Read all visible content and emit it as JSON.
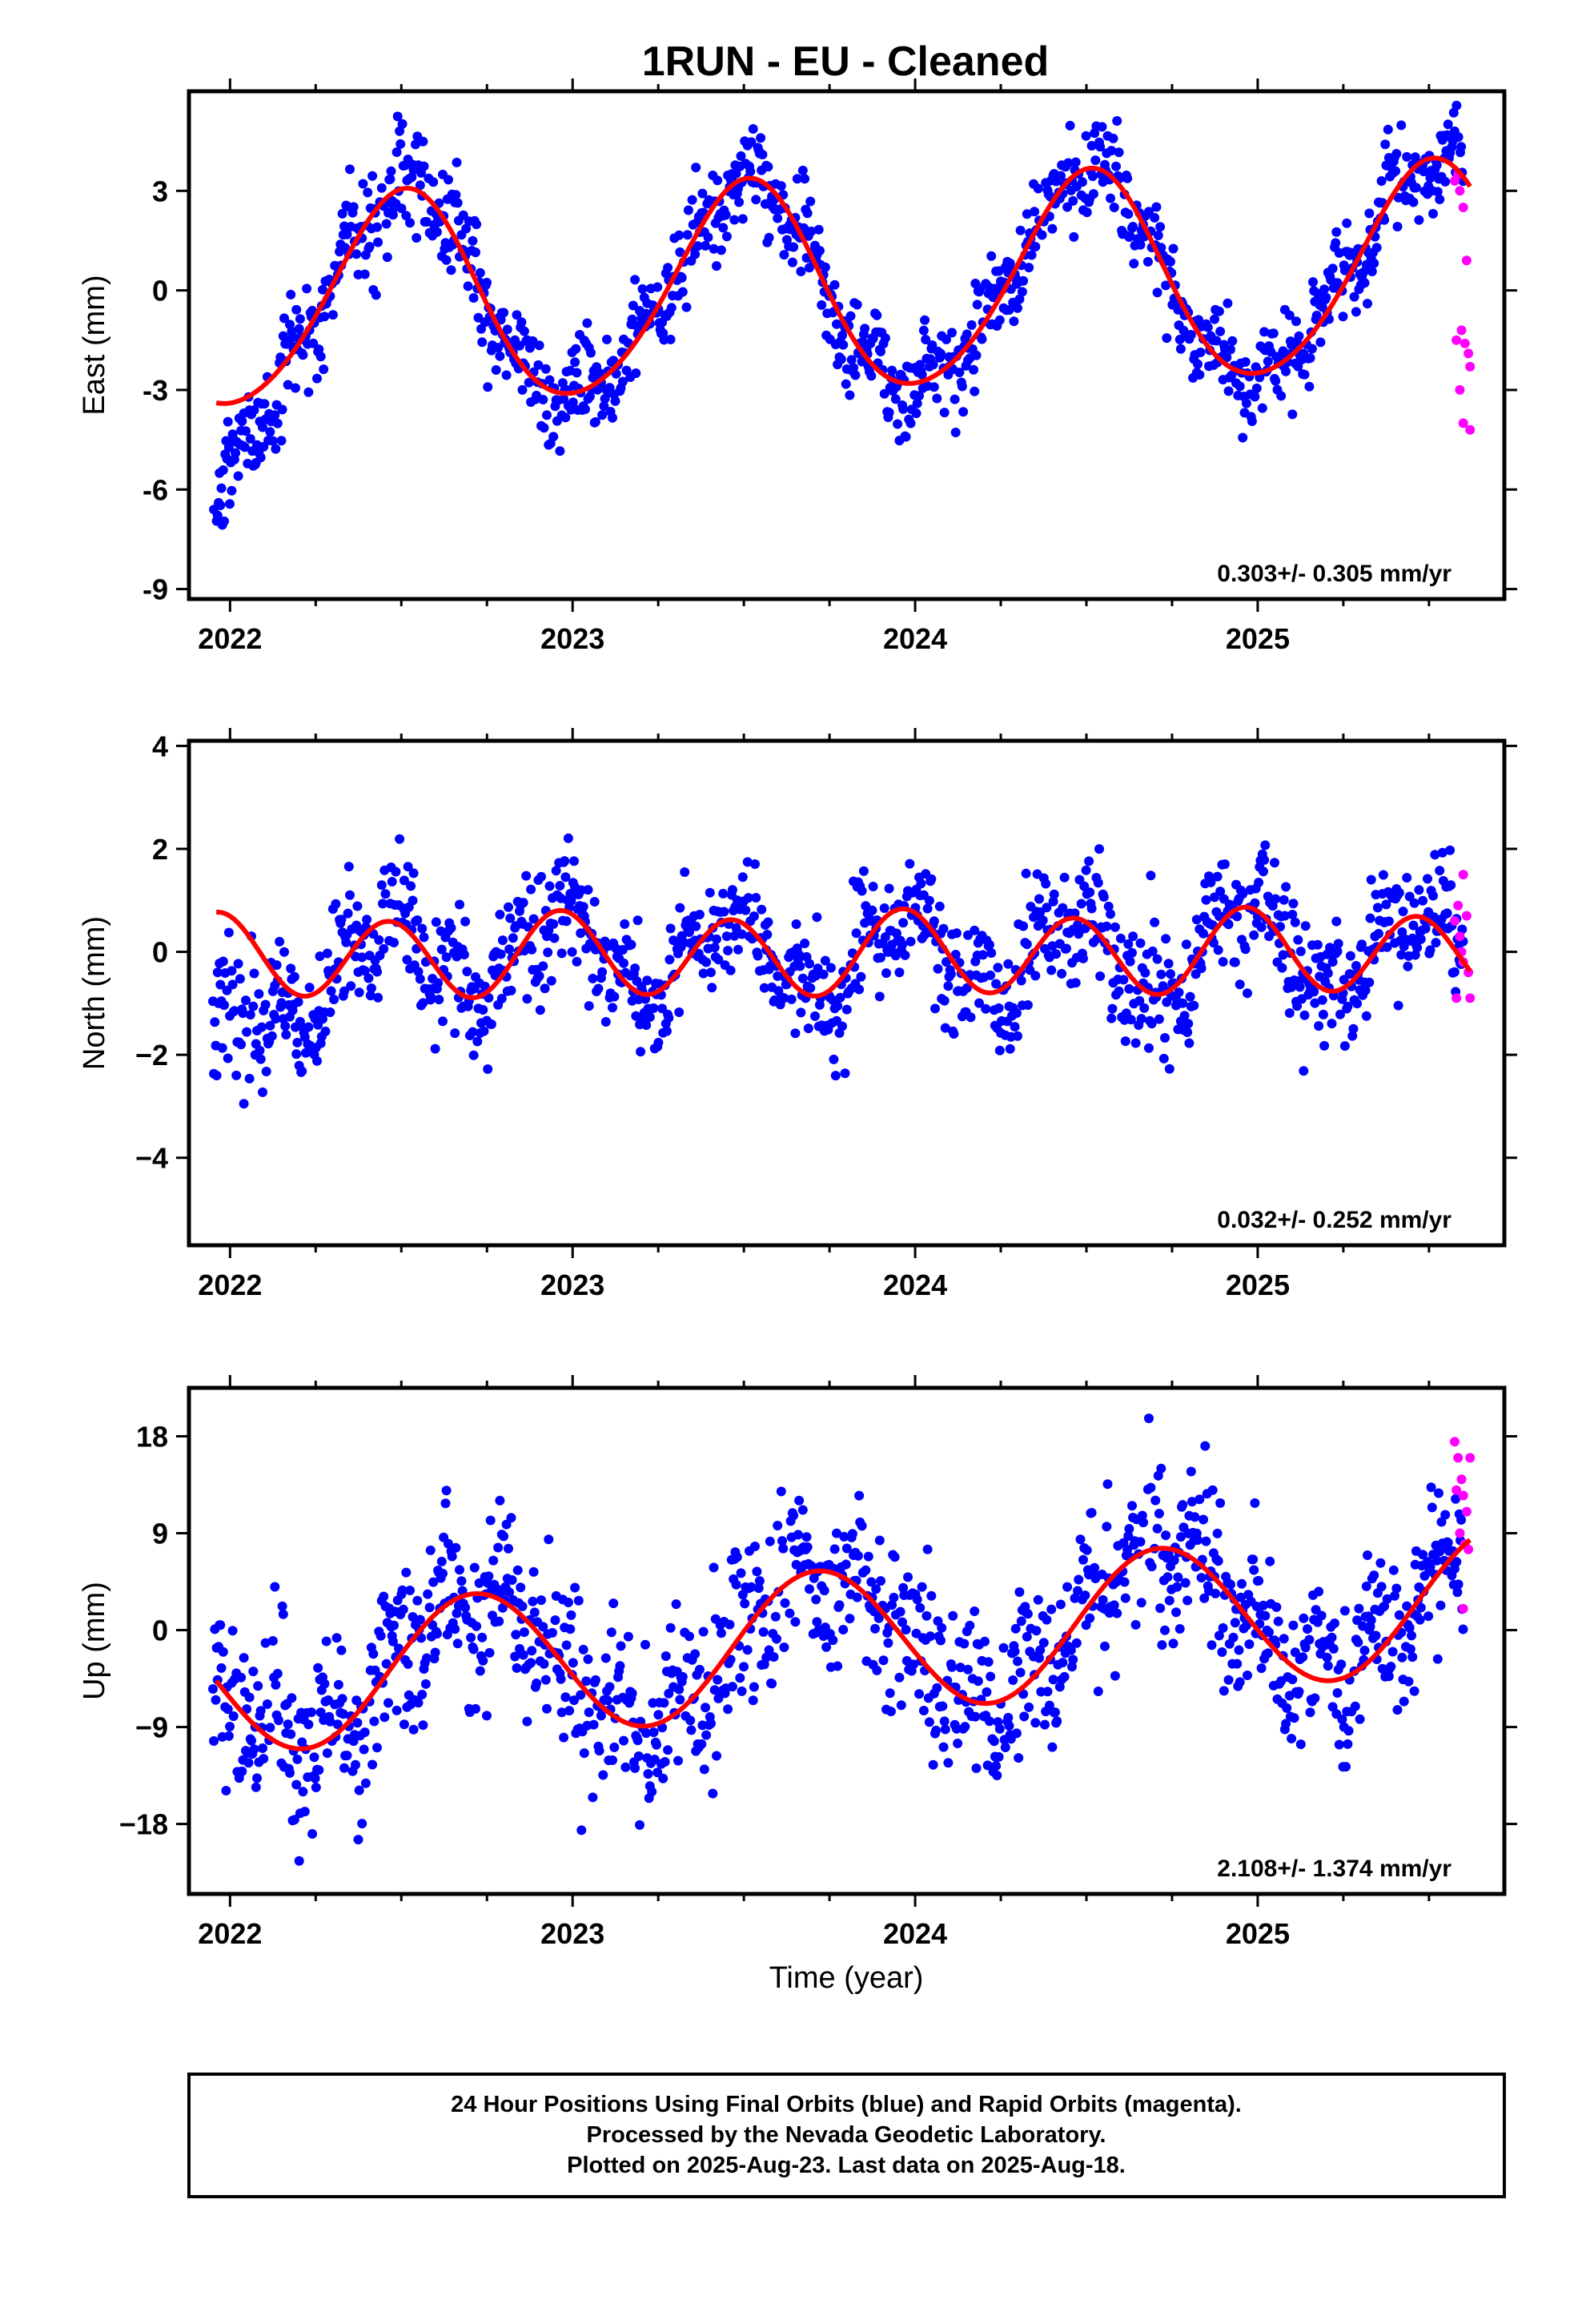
{
  "title": "1RUN  - EU - Cleaned",
  "xlabel": "Time (year)",
  "footer": {
    "line1": "24 Hour Positions Using Final Orbits (blue) and Rapid Orbits (magenta).",
    "line2": "Processed by the Nevada Geodetic Laboratory.",
    "line3": "Plotted on 2025-Aug-23. Last data on 2025-Aug-18."
  },
  "colors": {
    "final": "#0000ff",
    "rapid": "#ff00ff",
    "model": "#ff0000",
    "axis": "#000000"
  },
  "chart_data": [
    {
      "type": "scatter",
      "component": "east",
      "ylabel": "East (mm)",
      "rate_label": "0.303+/- 0.305 mm/yr",
      "xlim": [
        2021.88,
        2025.72
      ],
      "ylim": [
        -9.3,
        6.0
      ],
      "xticks": [
        2022,
        2023,
        2024,
        2025
      ],
      "xtick_labels": [
        "2022",
        "2023",
        "2024",
        "2025"
      ],
      "yticks": [
        -9,
        -6,
        -3,
        0,
        3
      ],
      "ytick_labels": [
        "-9",
        "-6",
        "-3",
        "0",
        "3"
      ],
      "ylabel_ticks_style": "ascii-minus",
      "model": {
        "x0": 2023.8,
        "offset": 0.05,
        "rate": 0.303,
        "a1": -0.1,
        "b1": -3.15,
        "a2": 0.15,
        "b2": 0.25
      },
      "early_trend": {
        "start": 2021.94,
        "end": 2022.25,
        "y_start": -7.0,
        "y_end": -2.4
      },
      "scatter_sigma": 0.95,
      "final_range": [
        2021.95,
        2025.6
      ],
      "rapid_points": [
        {
          "x": 2025.575,
          "y": 3.3
        },
        {
          "x": 2025.585,
          "y": 3.5
        },
        {
          "x": 2025.59,
          "y": 3.0
        },
        {
          "x": 2025.6,
          "y": 2.5
        },
        {
          "x": 2025.61,
          "y": 0.9
        },
        {
          "x": 2025.58,
          "y": -1.5
        },
        {
          "x": 2025.595,
          "y": -1.2
        },
        {
          "x": 2025.605,
          "y": -1.6
        },
        {
          "x": 2025.615,
          "y": -1.9
        },
        {
          "x": 2025.62,
          "y": -2.3
        },
        {
          "x": 2025.6,
          "y": -4.0
        },
        {
          "x": 2025.62,
          "y": -4.2
        },
        {
          "x": 2025.59,
          "y": -3.0
        }
      ]
    },
    {
      "type": "scatter",
      "component": "north",
      "ylabel": "North (mm)",
      "rate_label": "0.032+/- 0.252 mm/yr",
      "xlim": [
        2021.88,
        2025.72
      ],
      "ylim": [
        -5.7,
        4.1
      ],
      "xticks": [
        2022,
        2023,
        2024,
        2025
      ],
      "xtick_labels": [
        "2022",
        "2023",
        "2024",
        "2025"
      ],
      "yticks": [
        -4,
        -2,
        0,
        2,
        4
      ],
      "ytick_labels": [
        "−4",
        "−2",
        "0",
        "2",
        "4"
      ],
      "model": {
        "x0": 2023.8,
        "offset": -0.05,
        "rate": 0.032,
        "a1": 0.0,
        "b1": 0.1,
        "a2": -0.35,
        "b2": 0.7
      },
      "early_trend": {
        "start": 2021.94,
        "end": 2022.28,
        "y_start": -1.5,
        "y_end": -2.6
      },
      "scatter_sigma": 0.8,
      "final_range": [
        2021.95,
        2025.6
      ],
      "rapid_points": [
        {
          "x": 2025.575,
          "y": 0.6
        },
        {
          "x": 2025.585,
          "y": 0.9
        },
        {
          "x": 2025.6,
          "y": 1.5
        },
        {
          "x": 2025.61,
          "y": 0.7
        },
        {
          "x": 2025.59,
          "y": 0.3
        },
        {
          "x": 2025.6,
          "y": -0.2
        },
        {
          "x": 2025.615,
          "y": -0.4
        },
        {
          "x": 2025.58,
          "y": -0.9
        },
        {
          "x": 2025.62,
          "y": -0.9
        },
        {
          "x": 2025.595,
          "y": 0.0
        }
      ]
    },
    {
      "type": "scatter",
      "component": "up",
      "ylabel": "Up (mm)",
      "rate_label": "2.108+/- 1.374 mm/yr",
      "xlim": [
        2021.88,
        2025.72
      ],
      "ylim": [
        -24.5,
        22.5
      ],
      "xticks": [
        2022,
        2023,
        2024,
        2025
      ],
      "xtick_labels": [
        "2022",
        "2023",
        "2024",
        "2025"
      ],
      "yticks": [
        -18,
        -9,
        0,
        9,
        18
      ],
      "ytick_labels": [
        "−18",
        "−9",
        "0",
        "9",
        "18"
      ],
      "model": {
        "x0": 2023.8,
        "offset": -1.0,
        "rate": 2.108,
        "a1": -6.5,
        "b1": -1.5,
        "a2": 0.0,
        "b2": 0.0
      },
      "early_trend": {
        "start": 2021.94,
        "end": 2022.0,
        "y_start": -7.0,
        "y_end": -7.0
      },
      "scatter_sigma": 5.0,
      "final_range": [
        2021.95,
        2025.6
      ],
      "rapid_points": [
        {
          "x": 2025.575,
          "y": 17.5
        },
        {
          "x": 2025.585,
          "y": 16.0
        },
        {
          "x": 2025.595,
          "y": 14.0
        },
        {
          "x": 2025.6,
          "y": 12.5
        },
        {
          "x": 2025.61,
          "y": 11.0
        },
        {
          "x": 2025.62,
          "y": 16.0
        },
        {
          "x": 2025.59,
          "y": 9.0
        },
        {
          "x": 2025.605,
          "y": 8.0
        },
        {
          "x": 2025.615,
          "y": 7.5
        },
        {
          "x": 2025.6,
          "y": 2.0
        },
        {
          "x": 2025.58,
          "y": 13.0
        }
      ]
    }
  ]
}
